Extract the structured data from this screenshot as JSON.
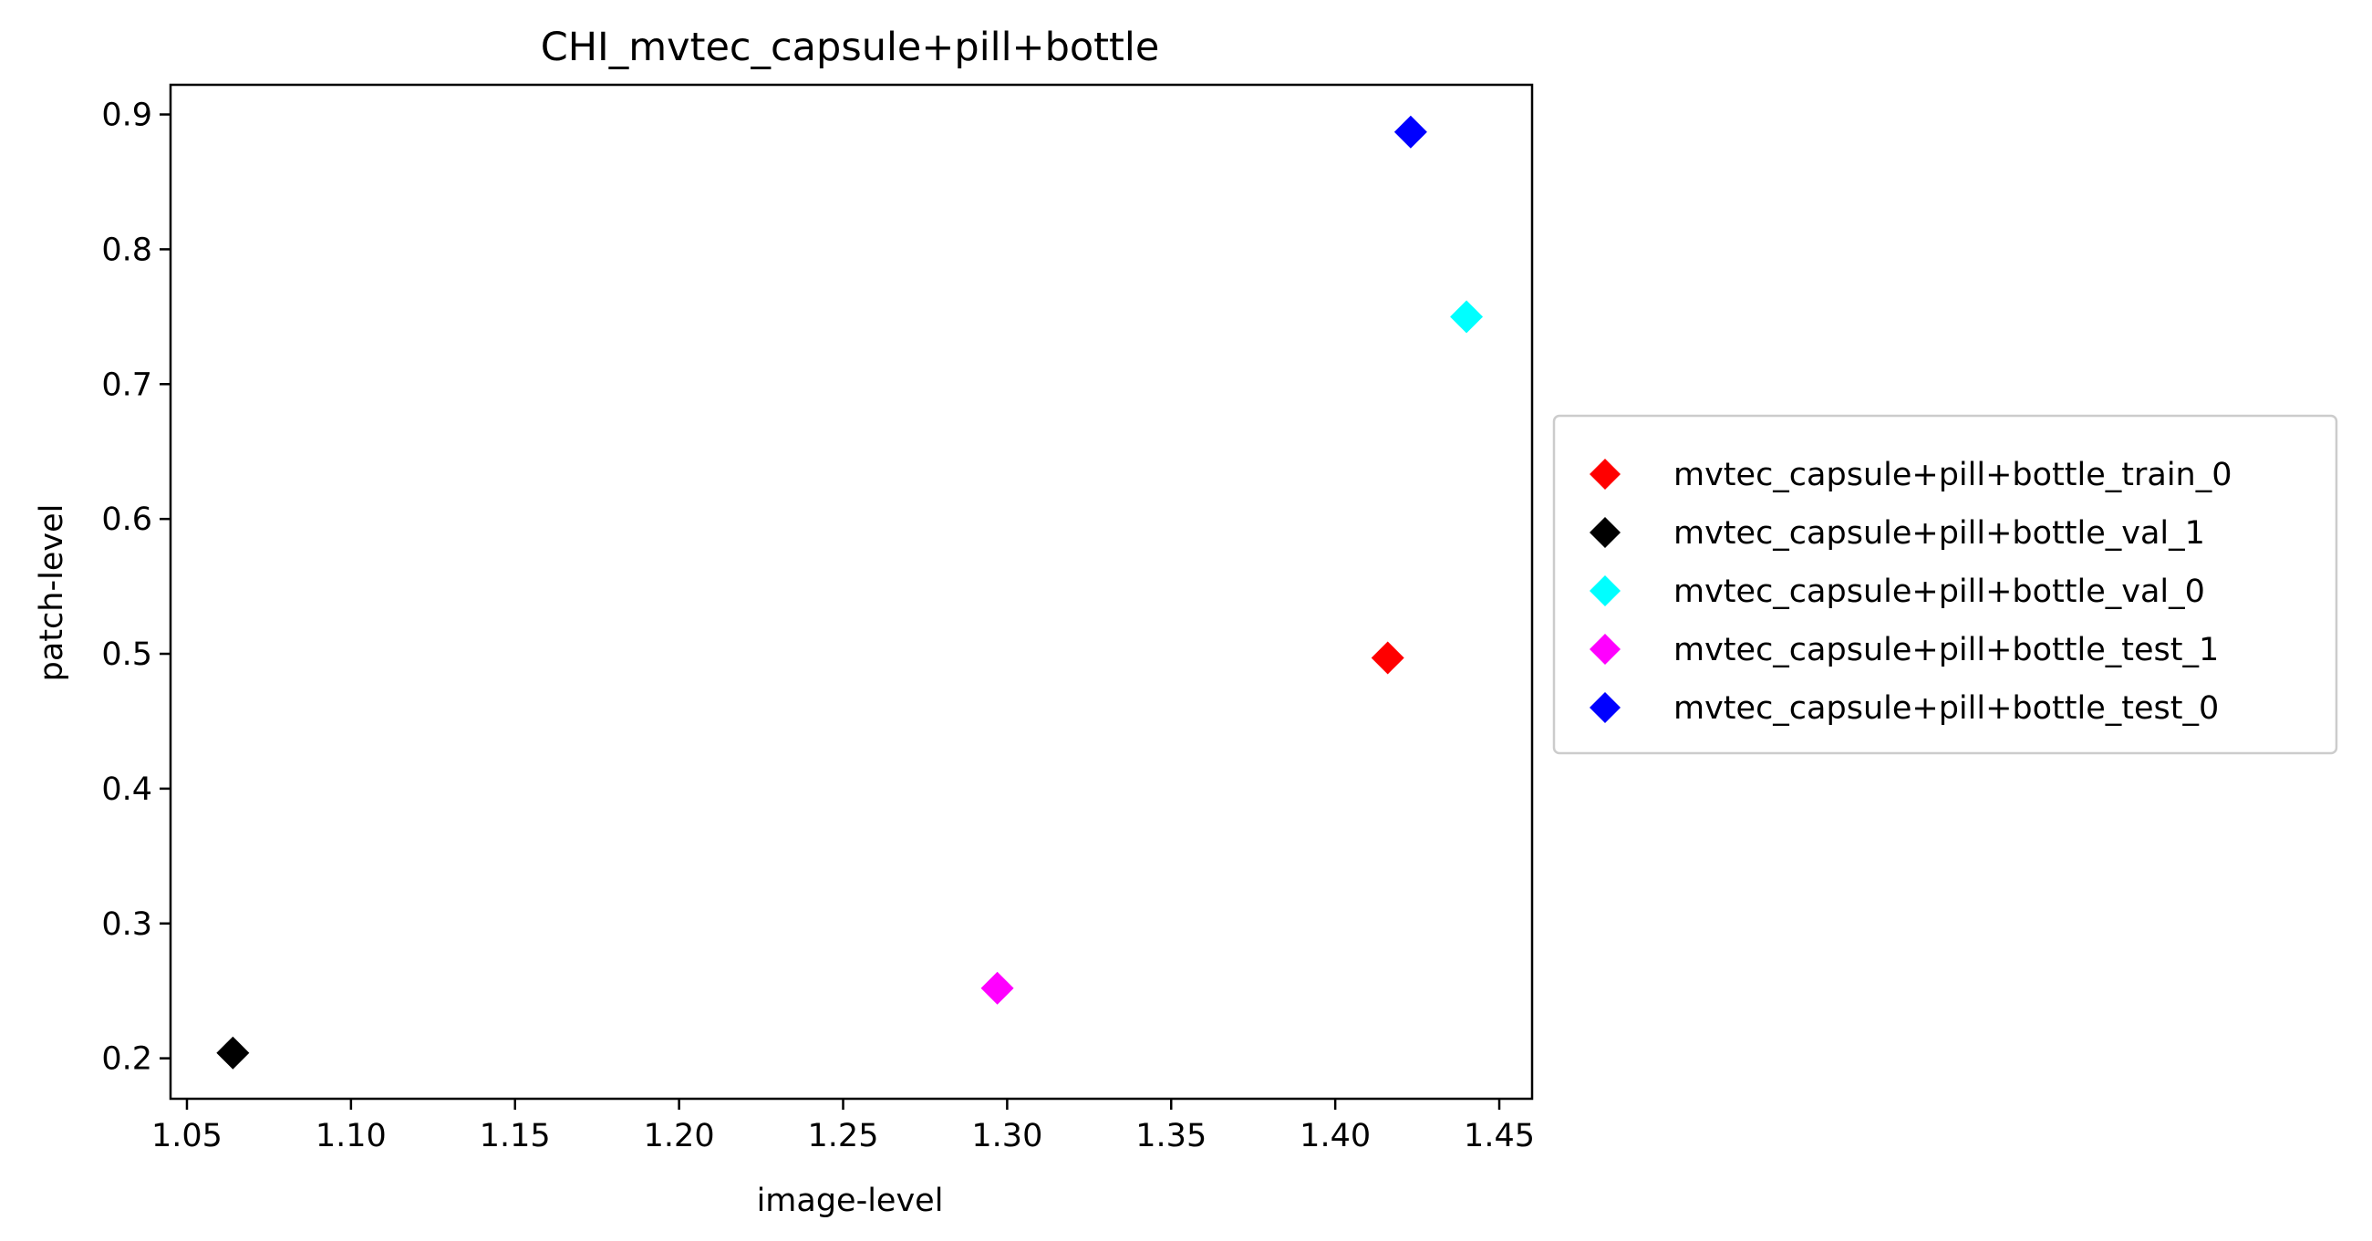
{
  "chart_data": {
    "type": "scatter",
    "title": "CHI_mvtec_capsule+pill+bottle",
    "xlabel": "image-level",
    "ylabel": "patch-level",
    "xlim": [
      1.045,
      1.46
    ],
    "ylim": [
      0.17,
      0.922
    ],
    "xticks": [
      1.05,
      1.1,
      1.15,
      1.2,
      1.25,
      1.3,
      1.35,
      1.4,
      1.45
    ],
    "yticks": [
      0.2,
      0.3,
      0.4,
      0.5,
      0.6,
      0.7,
      0.8,
      0.9
    ],
    "xtick_labels": [
      "1.05",
      "1.10",
      "1.15",
      "1.20",
      "1.25",
      "1.30",
      "1.35",
      "1.40",
      "1.45"
    ],
    "ytick_labels": [
      "0.2",
      "0.3",
      "0.4",
      "0.5",
      "0.6",
      "0.7",
      "0.8",
      "0.9"
    ],
    "marker": "diamond",
    "grid": false,
    "legend_position": "center-right-outside",
    "series": [
      {
        "name": "mvtec_capsule+pill+bottle_train_0",
        "color": "#ff0000",
        "x": 1.416,
        "y": 0.497
      },
      {
        "name": "mvtec_capsule+pill+bottle_val_1",
        "color": "#000000",
        "x": 1.064,
        "y": 0.204
      },
      {
        "name": "mvtec_capsule+pill+bottle_val_0",
        "color": "#00ffff",
        "x": 1.44,
        "y": 0.75
      },
      {
        "name": "mvtec_capsule+pill+bottle_test_1",
        "color": "#ff00ff",
        "x": 1.297,
        "y": 0.252
      },
      {
        "name": "mvtec_capsule+pill+bottle_test_0",
        "color": "#0000ff",
        "x": 1.423,
        "y": 0.887
      }
    ]
  }
}
